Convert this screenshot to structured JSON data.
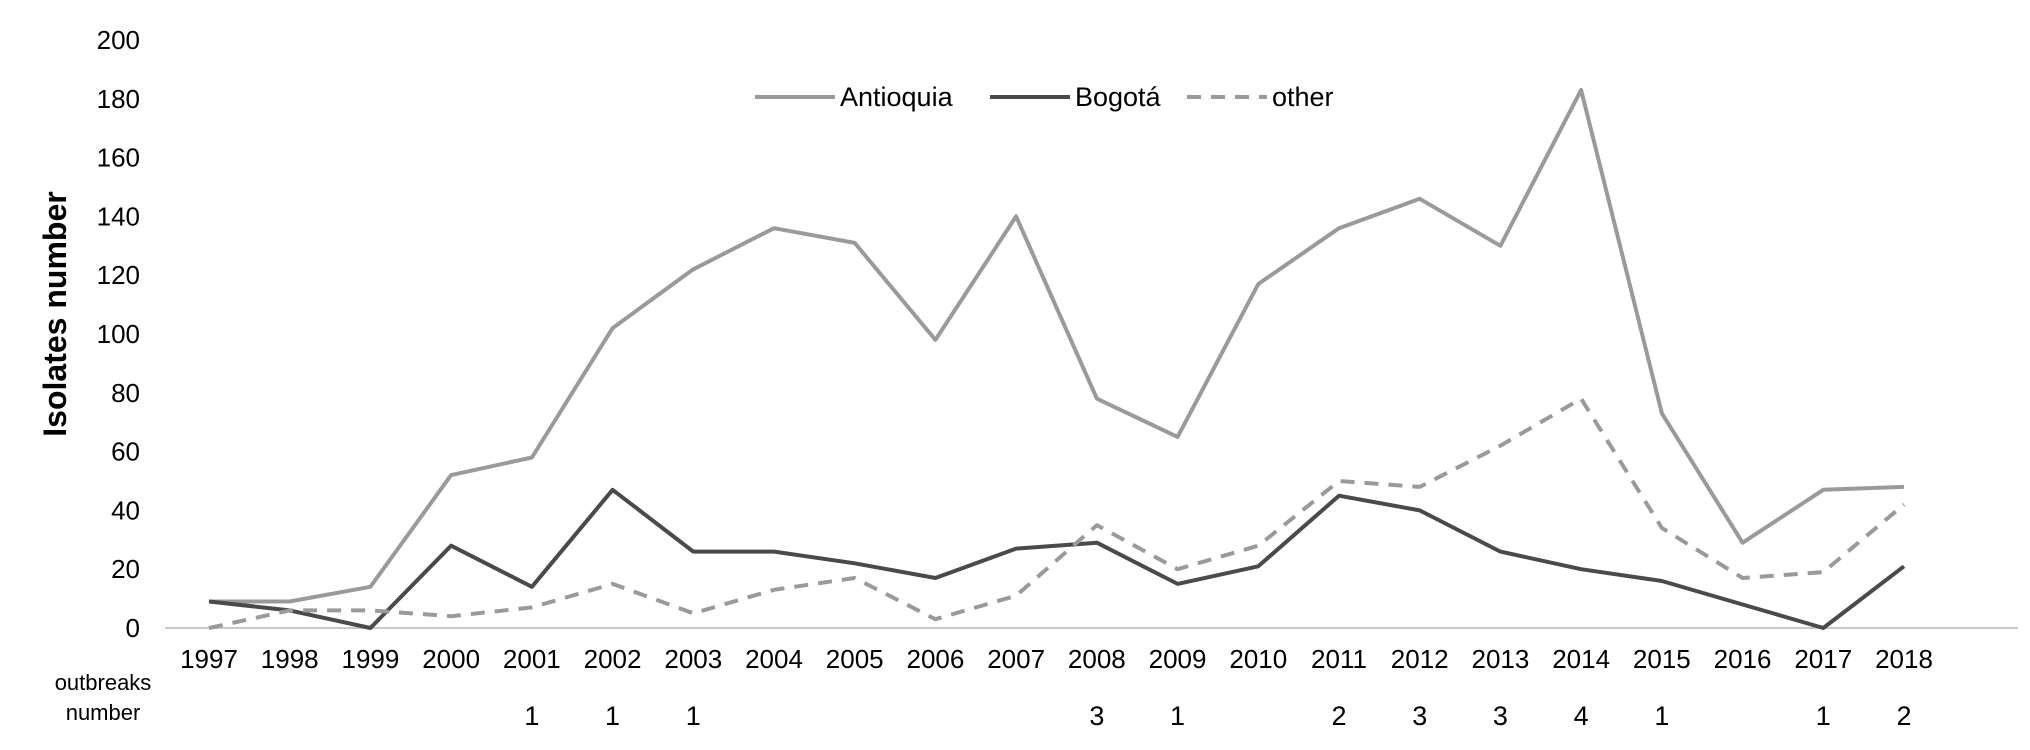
{
  "chart_data": {
    "type": "line",
    "title": "",
    "xlabel": "",
    "ylabel": "Isolates number",
    "ylim": [
      0,
      200
    ],
    "yticks": [
      "0",
      "20",
      "40",
      "60",
      "80",
      "100",
      "120",
      "140",
      "160",
      "180",
      "200"
    ],
    "categories": [
      "1997",
      "1998",
      "1999",
      "2000",
      "2001",
      "2002",
      "2003",
      "2004",
      "2005",
      "2006",
      "2007",
      "2008",
      "2009",
      "2010",
      "2011",
      "2012",
      "2013",
      "2014",
      "2015",
      "2016",
      "2017",
      "2018"
    ],
    "legend_position": "top-center",
    "grid": false,
    "series": [
      {
        "name": "Antioquia",
        "color": "#9a9a9a",
        "style": "solid",
        "values": [
          9,
          9,
          14,
          52,
          58,
          102,
          122,
          136,
          131,
          98,
          140,
          78,
          65,
          117,
          136,
          146,
          130,
          183,
          73,
          29,
          47,
          48
        ]
      },
      {
        "name": "Bogotá",
        "color": "#4a4a4a",
        "style": "solid",
        "values": [
          9,
          6,
          0,
          28,
          14,
          47,
          26,
          26,
          22,
          17,
          27,
          29,
          15,
          21,
          45,
          40,
          26,
          20,
          16,
          8,
          0,
          21
        ]
      },
      {
        "name": "other",
        "color": "#9a9a9a",
        "style": "dashed",
        "values": [
          0,
          6,
          6,
          4,
          7,
          15,
          5,
          13,
          17,
          3,
          11,
          35,
          20,
          28,
          50,
          48,
          62,
          78,
          34,
          17,
          19,
          42
        ]
      }
    ],
    "outbreaks": {
      "label_line1": "outbreaks",
      "label_line2": "number",
      "values": [
        "",
        "",
        "",
        "",
        "1",
        "1",
        "1",
        "",
        "",
        "",
        "",
        "3",
        "1",
        "",
        "2",
        "3",
        "3",
        "4",
        "1",
        "",
        "1",
        "2"
      ]
    }
  }
}
